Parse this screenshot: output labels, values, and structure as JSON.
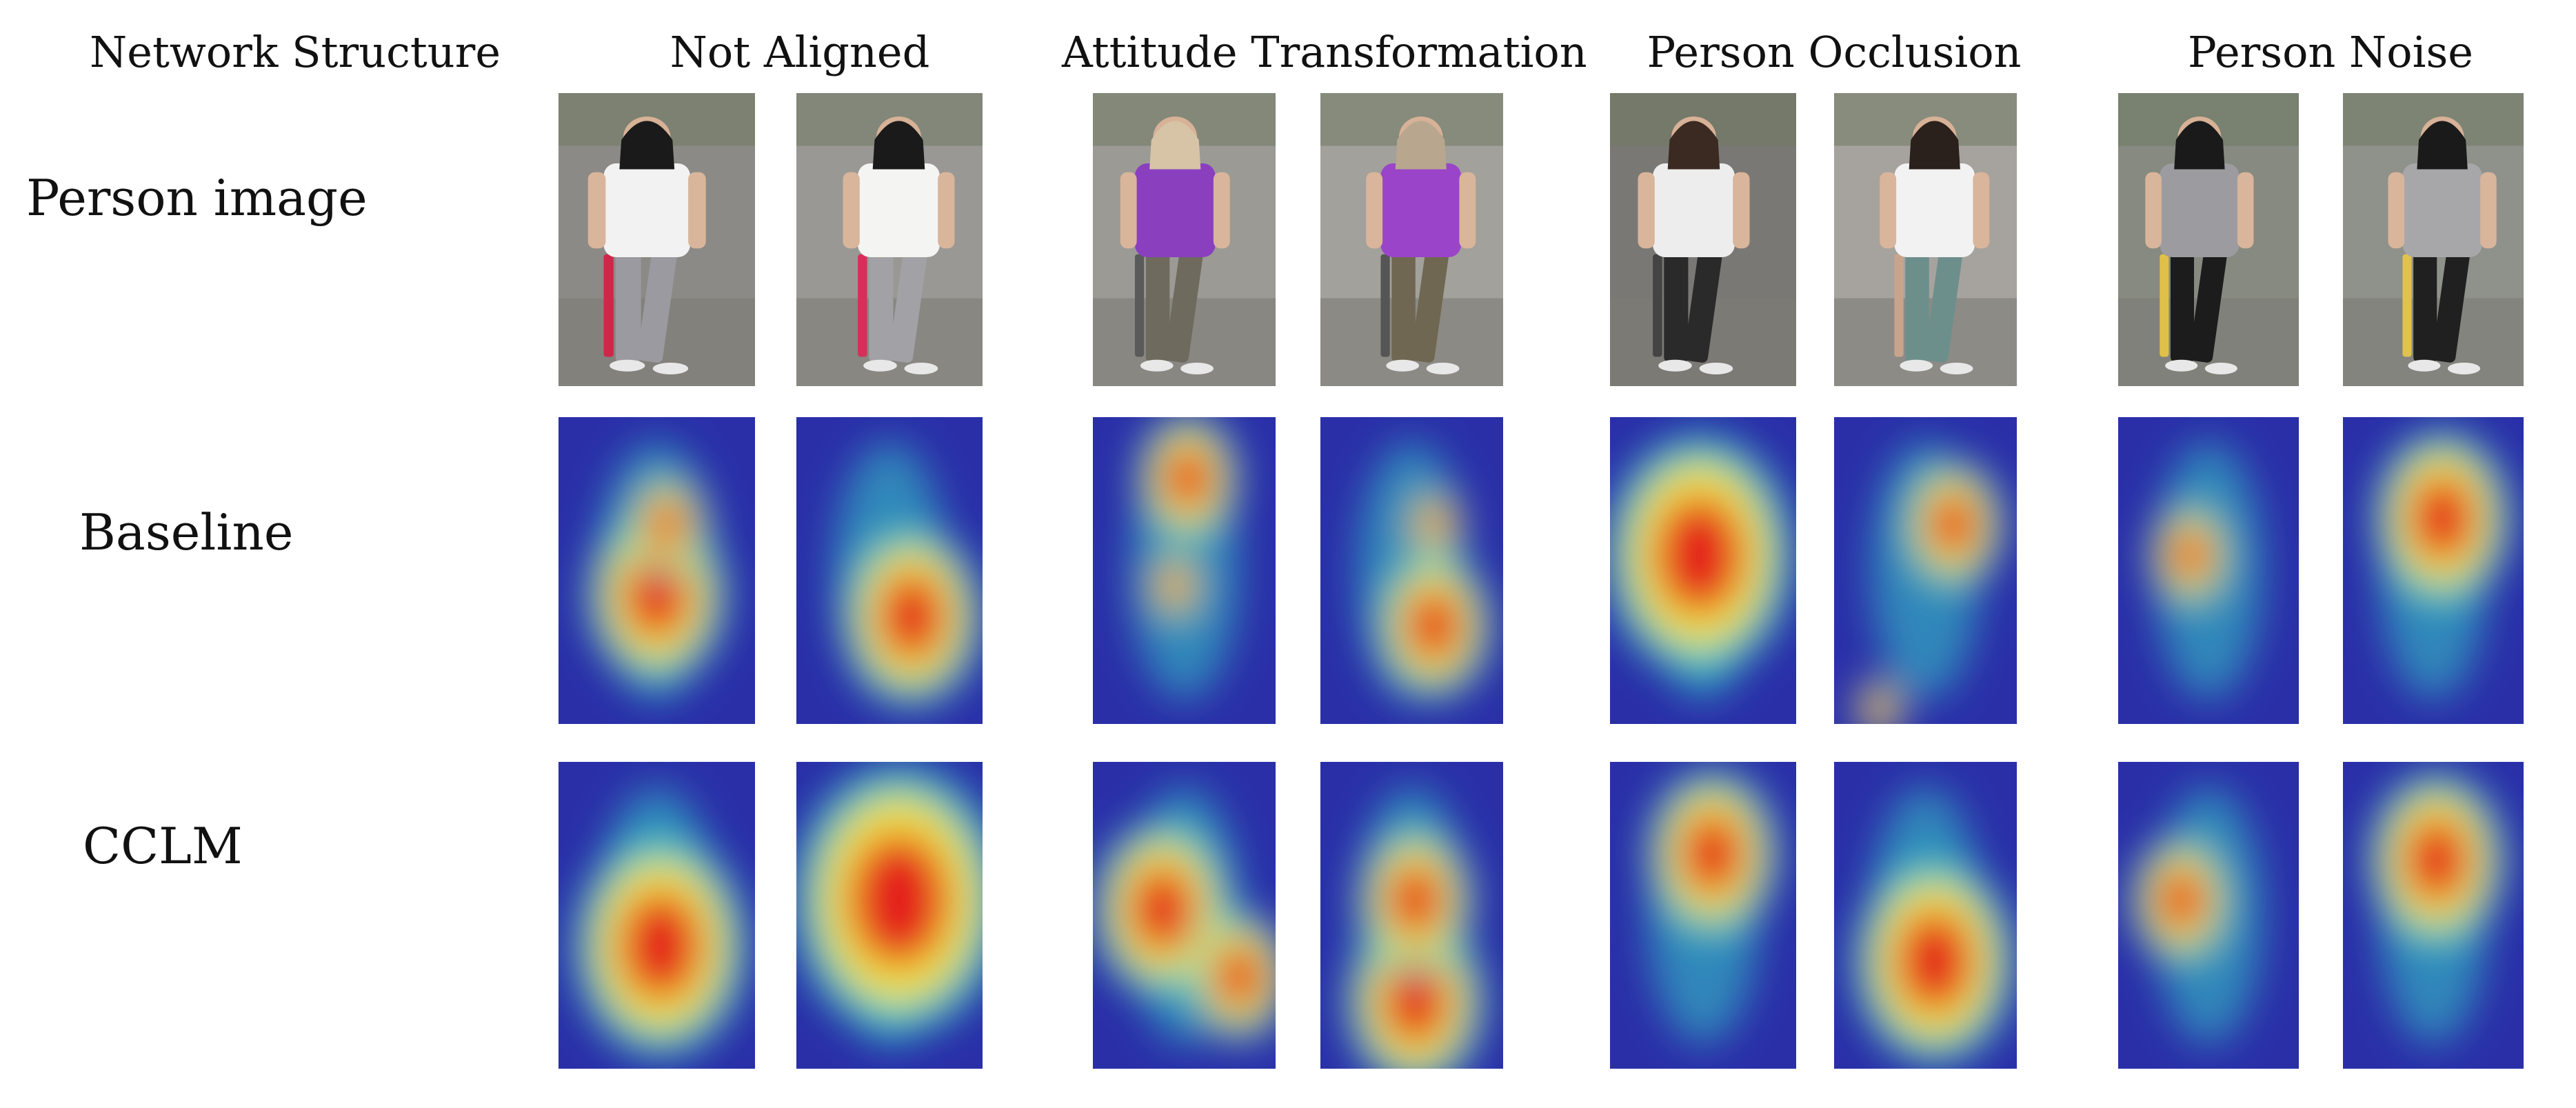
{
  "header": {
    "network_structure": "Network Structure",
    "columns": [
      {
        "key": "not_aligned",
        "label": "Not Aligned"
      },
      {
        "key": "attitude",
        "label": "Attitude Transformation"
      },
      {
        "key": "occlusion",
        "label": "Person Occlusion"
      },
      {
        "key": "noise",
        "label": "Person Noise"
      }
    ]
  },
  "rows": [
    {
      "key": "person",
      "label": "Person image",
      "kind": "photo"
    },
    {
      "key": "baseline",
      "label": "Baseline",
      "kind": "heatmap"
    },
    {
      "key": "cclm",
      "label": "CCLM",
      "kind": "heatmap"
    }
  ],
  "colors": {
    "heat_low": "#2a2fa8",
    "heat_mid": "#35d0c8",
    "heat_warm": "#f2e33a",
    "heat_high": "#e4201c"
  },
  "cells": {
    "person": [
      {
        "shirt": "#f2f2f2",
        "pants": "#9a9aa0",
        "hair": "#1a1a1a",
        "accent": "#d0264a",
        "bg": "#8c8a86"
      },
      {
        "shirt": "#f4f4f2",
        "pants": "#a2a2a6",
        "hair": "#1a1a1a",
        "accent": "#d6305a",
        "bg": "#9a9894"
      },
      {
        "shirt": "#8a3fbf",
        "pants": "#6e6a5e",
        "hair": "#d7c3a6",
        "accent": "#5a5a5a",
        "bg": "#9b9a95"
      },
      {
        "shirt": "#9a44c9",
        "pants": "#6f6752",
        "hair": "#b8a78e",
        "accent": "#555555",
        "bg": "#a2a19b"
      },
      {
        "shirt": "#ededed",
        "pants": "#2a2a2a",
        "hair": "#3a2a22",
        "accent": "#444444",
        "bg": "#7a7874"
      },
      {
        "shirt": "#f2f2f2",
        "pants": "#6d8f8c",
        "hair": "#2a201c",
        "accent": "#c9a48c",
        "bg": "#a6a39e"
      },
      {
        "shirt": "#9c9ca0",
        "pants": "#1c1c1c",
        "hair": "#1a1a1a",
        "accent": "#e0c048",
        "bg": "#868a80"
      },
      {
        "shirt": "#a7a7aa",
        "pants": "#202020",
        "hair": "#1a1a1a",
        "accent": "#e1c24c",
        "bg": "#8f918b"
      }
    ],
    "baseline": [
      {
        "hot": [
          [
            0.5,
            0.58,
            0.28
          ],
          [
            0.55,
            0.35,
            0.16
          ]
        ]
      },
      {
        "hot": [
          [
            0.62,
            0.65,
            0.3
          ]
        ]
      },
      {
        "hot": [
          [
            0.52,
            0.2,
            0.22
          ],
          [
            0.45,
            0.55,
            0.12
          ]
        ]
      },
      {
        "hot": [
          [
            0.62,
            0.68,
            0.25
          ],
          [
            0.62,
            0.35,
            0.12
          ]
        ]
      },
      {
        "hot": [
          [
            0.48,
            0.45,
            0.4
          ]
        ]
      },
      {
        "hot": [
          [
            0.65,
            0.35,
            0.22
          ],
          [
            0.25,
            0.95,
            0.1
          ]
        ]
      },
      {
        "hot": [
          [
            0.4,
            0.45,
            0.18
          ]
        ]
      },
      {
        "hot": [
          [
            0.55,
            0.33,
            0.3
          ]
        ]
      }
    ],
    "cclm": [
      {
        "hot": [
          [
            0.52,
            0.6,
            0.35
          ]
        ]
      },
      {
        "hot": [
          [
            0.55,
            0.45,
            0.45
          ]
        ]
      },
      {
        "hot": [
          [
            0.38,
            0.48,
            0.3
          ],
          [
            0.8,
            0.7,
            0.22
          ]
        ]
      },
      {
        "hot": [
          [
            0.52,
            0.78,
            0.3
          ],
          [
            0.52,
            0.45,
            0.25
          ]
        ]
      },
      {
        "hot": [
          [
            0.55,
            0.3,
            0.28
          ]
        ]
      },
      {
        "hot": [
          [
            0.55,
            0.65,
            0.35
          ]
        ]
      },
      {
        "hot": [
          [
            0.35,
            0.45,
            0.22
          ]
        ]
      },
      {
        "hot": [
          [
            0.52,
            0.32,
            0.3
          ]
        ]
      }
    ]
  }
}
